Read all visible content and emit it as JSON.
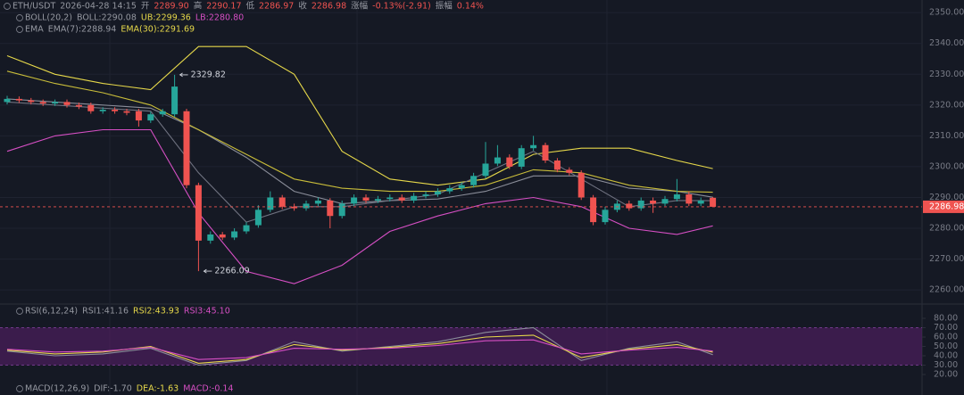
{
  "chart_data": {
    "type": "candlestick",
    "header": [
      {
        "text": "ETH/USDT",
        "color": "#9598a1"
      },
      {
        "text": "2026-04-28 14:15",
        "color": "#9598a1"
      },
      {
        "text": "开",
        "color": "#9598a1"
      },
      {
        "text": "2289.90",
        "color": "#ef5350"
      },
      {
        "text": "高",
        "color": "#9598a1"
      },
      {
        "text": "2290.17",
        "color": "#ef5350"
      },
      {
        "text": "低",
        "color": "#9598a1"
      },
      {
        "text": "2286.97",
        "color": "#ef5350"
      },
      {
        "text": "收",
        "color": "#9598a1"
      },
      {
        "text": "2286.98",
        "color": "#ef5350"
      },
      {
        "text": "涨幅",
        "color": "#9598a1"
      },
      {
        "text": "-0.13%(-2.91)",
        "color": "#ef5350"
      },
      {
        "text": "振幅",
        "color": "#9598a1"
      },
      {
        "text": "0.14%",
        "color": "#ef5350"
      }
    ],
    "legend_boll": [
      {
        "text": "BOLL(20,2)",
        "color": "#9598a1"
      },
      {
        "text": "BOLL:2290.08",
        "color": "#9598a1"
      },
      {
        "text": "UB:2299.36",
        "color": "#e6d84a"
      },
      {
        "text": "LB:2280.80",
        "color": "#d64fc4"
      }
    ],
    "legend_ema": [
      {
        "text": "EMA",
        "color": "#9598a1"
      },
      {
        "text": "EMA(7):2288.94",
        "color": "#9598a1"
      },
      {
        "text": "EMA(30):2291.69",
        "color": "#e6d84a"
      }
    ],
    "legend_rsi": [
      {
        "text": "RSI(6,12,24)",
        "color": "#9598a1"
      },
      {
        "text": "RSI1:41.16",
        "color": "#9598a1"
      },
      {
        "text": "RSI2:43.93",
        "color": "#e6d84a"
      },
      {
        "text": "RSI3:45.10",
        "color": "#d64fc4"
      }
    ],
    "legend_macd": [
      {
        "text": "MACD(12,26,9)",
        "color": "#9598a1"
      },
      {
        "text": "DIF:-1.70",
        "color": "#9598a1"
      },
      {
        "text": "DEA:-1.63",
        "color": "#e6d84a"
      },
      {
        "text": "MACD:-0.14",
        "color": "#d64fc4"
      }
    ],
    "candles": {
      "up_color": "#26a69a",
      "down_color": "#ef5350",
      "open": [
        2321,
        2322,
        2321.5,
        2321,
        2320.5,
        2321,
        2320,
        2320,
        2318,
        2318.5,
        2318,
        2318,
        2315,
        2317,
        2317,
        2318,
        2294,
        2276,
        2278,
        2277,
        2279,
        2281,
        2286,
        2290,
        2287,
        2286.5,
        2288,
        2289,
        2284,
        2288,
        2290,
        2289,
        2289.5,
        2290,
        2289,
        2290.5,
        2291,
        2292,
        2293,
        2294,
        2297,
        2301,
        2303,
        2300,
        2306,
        2307,
        2302,
        2299,
        2298,
        2290,
        2282,
        2286,
        2288,
        2286.5,
        2289,
        2288,
        2289.5,
        2291,
        2288,
        2289.9
      ],
      "high": [
        2323,
        2322.8,
        2322.3,
        2321.8,
        2321.8,
        2321.8,
        2320.8,
        2320.8,
        2319.3,
        2319.3,
        2318.8,
        2318.8,
        2317.8,
        2318.8,
        2329.82,
        2318.8,
        2294.8,
        2279,
        2278.8,
        2280,
        2282,
        2287.5,
        2292,
        2290.8,
        2288,
        2289,
        2290,
        2289.8,
        2289,
        2291,
        2291,
        2290.5,
        2291,
        2291,
        2291.5,
        2292,
        2293,
        2294,
        2295,
        2298,
        2308,
        2307,
        2304,
        2307,
        2310,
        2307.8,
        2302.8,
        2299.8,
        2298.8,
        2290.8,
        2287,
        2289,
        2289,
        2290,
        2290,
        2290.5,
        2296,
        2292,
        2290,
        2290.17
      ],
      "low": [
        2320.2,
        2320.7,
        2320.2,
        2319.7,
        2319.7,
        2319.2,
        2318.7,
        2317.2,
        2317.2,
        2317.2,
        2316.7,
        2313,
        2314.2,
        2316.2,
        2316.2,
        2293,
        2266.09,
        2275,
        2276.2,
        2276.2,
        2278.2,
        2280.2,
        2285.2,
        2286.2,
        2285.7,
        2285.7,
        2287.2,
        2280,
        2283.2,
        2287.2,
        2288.2,
        2288.2,
        2288.7,
        2288.2,
        2288.2,
        2289.7,
        2290.2,
        2291.2,
        2292.2,
        2293.2,
        2296.2,
        2300.2,
        2299.2,
        2299.2,
        2305.2,
        2301.2,
        2298.2,
        2297.2,
        2289.2,
        2281,
        2281.2,
        2285.2,
        2285.7,
        2285.7,
        2285,
        2287.2,
        2288.7,
        2287.2,
        2287.2,
        2286.97
      ],
      "close": [
        2322,
        2321.5,
        2321,
        2320.5,
        2321,
        2320,
        2319.5,
        2318,
        2318.5,
        2318,
        2317.5,
        2315,
        2317,
        2318,
        2326,
        2294,
        2276,
        2278,
        2277,
        2279,
        2281,
        2286,
        2290,
        2287,
        2286.5,
        2288,
        2289,
        2284,
        2288,
        2290,
        2289,
        2289.5,
        2290,
        2289,
        2290.5,
        2291,
        2292,
        2293,
        2294,
        2297,
        2301,
        2303,
        2300,
        2306,
        2307,
        2302,
        2299,
        2298,
        2290,
        2282,
        2286,
        2288,
        2286.5,
        2289,
        2288,
        2289.5,
        2291,
        2288,
        2289,
        2286.98
      ]
    },
    "ylim": [
      2255.7,
      2354.1
    ],
    "yticks": [
      {
        "value": 2260,
        "label": "2260.00"
      },
      {
        "value": 2270,
        "label": "2270.00"
      },
      {
        "value": 2280,
        "label": "2280.00"
      },
      {
        "value": 2290,
        "label": "2290.00"
      },
      {
        "value": 2300,
        "label": "2300.00"
      },
      {
        "value": 2310,
        "label": "2310.00"
      },
      {
        "value": 2320,
        "label": "2320.00"
      },
      {
        "value": 2330,
        "label": "2330.00"
      },
      {
        "value": 2340,
        "label": "2340.00"
      },
      {
        "value": 2350,
        "label": "2350.00"
      }
    ],
    "lines": {
      "x": [
        0,
        4,
        8,
        12,
        16,
        20,
        24,
        28,
        32,
        36,
        40,
        44,
        48,
        52,
        56,
        59
      ],
      "series": [
        {
          "color": "#e6d84a",
          "values": [
            2336,
            2330,
            2327,
            2325,
            2339,
            2339,
            2330,
            2305,
            2296,
            2294,
            2296,
            2304,
            2306,
            2306,
            2302,
            2299.36
          ]
        },
        {
          "color": "#8a8d99",
          "values": [
            2322,
            2321,
            2320,
            2319,
            2312,
            2303,
            2292,
            2288,
            2289,
            2289.5,
            2292,
            2297,
            2297,
            2293,
            2292,
            2290.08
          ]
        },
        {
          "color": "#d64fc4",
          "values": [
            2305,
            2310,
            2312,
            2312,
            2285,
            2266,
            2262,
            2268,
            2279,
            2284,
            2288,
            2290,
            2287,
            2280,
            2278,
            2280.8
          ]
        },
        {
          "color": "#6f7280",
          "values": [
            2321,
            2320,
            2319,
            2318,
            2298,
            2282,
            2287,
            2287,
            2289,
            2291,
            2298,
            2305,
            2296,
            2287,
            2289,
            2288.94
          ]
        },
        {
          "color": "#c9bd3a",
          "values": [
            2331,
            2327,
            2324,
            2320,
            2312,
            2304,
            2296,
            2293,
            2292,
            2292,
            2294,
            2299,
            2298,
            2294,
            2292,
            2291.69
          ]
        }
      ]
    },
    "rsi": {
      "ylim": [
        -1.9,
        94.3
      ],
      "band": [
        30,
        70
      ],
      "band_color": "#5b1f6e",
      "yticks": [
        {
          "value": 80,
          "label": "80.00"
        },
        {
          "value": 70,
          "label": "70.00"
        },
        {
          "value": 60,
          "label": "60.00"
        },
        {
          "value": 50,
          "label": "50.00"
        },
        {
          "value": 40,
          "label": "40.00"
        },
        {
          "value": 30,
          "label": "30.00"
        },
        {
          "value": 20,
          "label": "20.00"
        }
      ],
      "x": [
        0,
        4,
        8,
        12,
        16,
        20,
        24,
        28,
        32,
        36,
        40,
        44,
        48,
        52,
        56,
        59
      ],
      "series": [
        {
          "color": "#8a8d99",
          "values": [
            45,
            40,
            42,
            48,
            30,
            35,
            55,
            45,
            50,
            55,
            65,
            70,
            35,
            48,
            55,
            41.16
          ]
        },
        {
          "color": "#e6d84a",
          "values": [
            46,
            42,
            44,
            50,
            32,
            36,
            52,
            46,
            49,
            53,
            60,
            62,
            38,
            47,
            52,
            43.93
          ]
        },
        {
          "color": "#d64fc4",
          "values": [
            47,
            44,
            45,
            49,
            36,
            38,
            48,
            47,
            48,
            51,
            56,
            57,
            42,
            46,
            49,
            45.1
          ]
        }
      ]
    }
  }
}
